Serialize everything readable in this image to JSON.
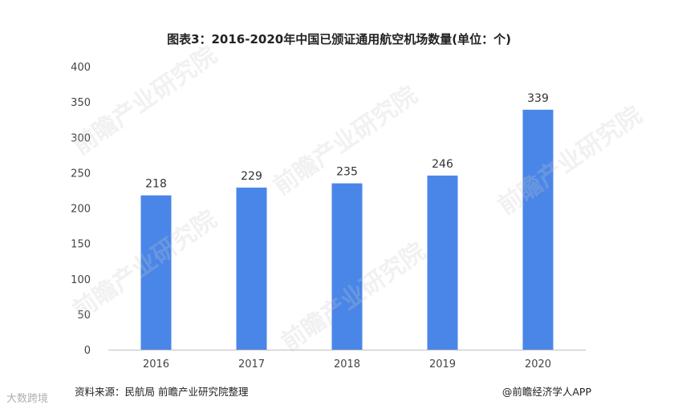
{
  "chart_data": {
    "type": "bar",
    "title": "图表3：2016-2020年中国已颁证通用航空机场数量(单位：个)",
    "categories": [
      "2016",
      "2017",
      "2018",
      "2019",
      "2020"
    ],
    "values": [
      218,
      229,
      235,
      246,
      339
    ],
    "data_labels": [
      "218",
      "229",
      "235",
      "246",
      "339"
    ],
    "y_ticks": [
      0,
      50,
      100,
      150,
      200,
      250,
      300,
      350,
      400
    ],
    "ylim": [
      0,
      400
    ],
    "xlabel": "",
    "ylabel": "",
    "grid": false,
    "bar_color": "#4a86e8"
  },
  "footer": {
    "source": "资料来源：民航局 前瞻产业研究院整理",
    "credit": "@前瞻经济学人APP"
  },
  "watermark": {
    "text": "前瞻产业研究院",
    "corner_logo": "大数跨境"
  }
}
